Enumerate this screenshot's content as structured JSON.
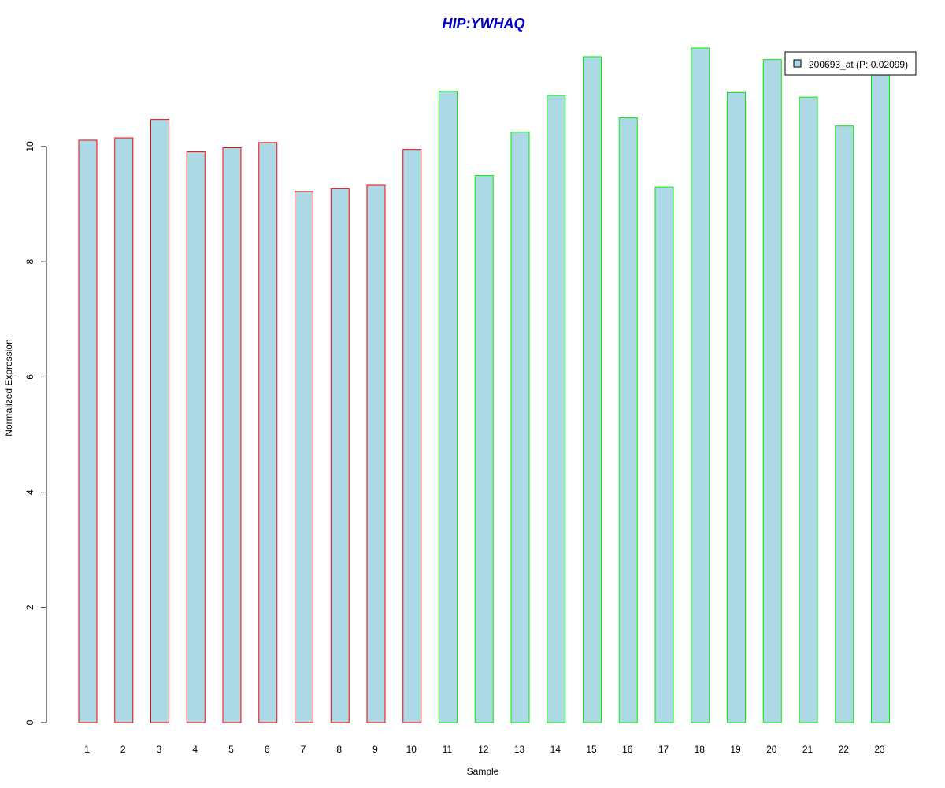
{
  "chart_data": {
    "type": "bar",
    "title": "HIP:YWHAQ",
    "xlabel": "Sample",
    "ylabel": "Normalized Expression",
    "categories": [
      "1",
      "2",
      "3",
      "4",
      "5",
      "6",
      "7",
      "8",
      "9",
      "10",
      "11",
      "12",
      "13",
      "14",
      "15",
      "16",
      "17",
      "18",
      "19",
      "20",
      "21",
      "22",
      "23"
    ],
    "series": [
      {
        "name": "200693_at (P: 0.02099)",
        "values": [
          10.11,
          10.15,
          10.47,
          9.91,
          9.98,
          10.07,
          9.22,
          9.27,
          9.33,
          9.95,
          10.96,
          9.5,
          10.25,
          10.89,
          11.56,
          10.5,
          9.3,
          11.71,
          10.94,
          11.51,
          10.86,
          10.36,
          11.32
        ]
      }
    ],
    "groups": [
      {
        "samples": [
          1,
          2,
          3,
          4,
          5,
          6,
          7,
          8,
          9,
          10
        ],
        "border_color": "#ff0000"
      },
      {
        "samples": [
          11,
          12,
          13,
          14,
          15,
          16,
          17,
          18,
          19,
          20,
          21,
          22,
          23
        ],
        "border_color": "#00ee00"
      }
    ],
    "bar_fill": "#add8e6",
    "yticks": [
      0,
      2,
      4,
      6,
      8,
      10
    ],
    "ylim": [
      0,
      11.71
    ],
    "grid": false,
    "legend_position": "top-right"
  }
}
